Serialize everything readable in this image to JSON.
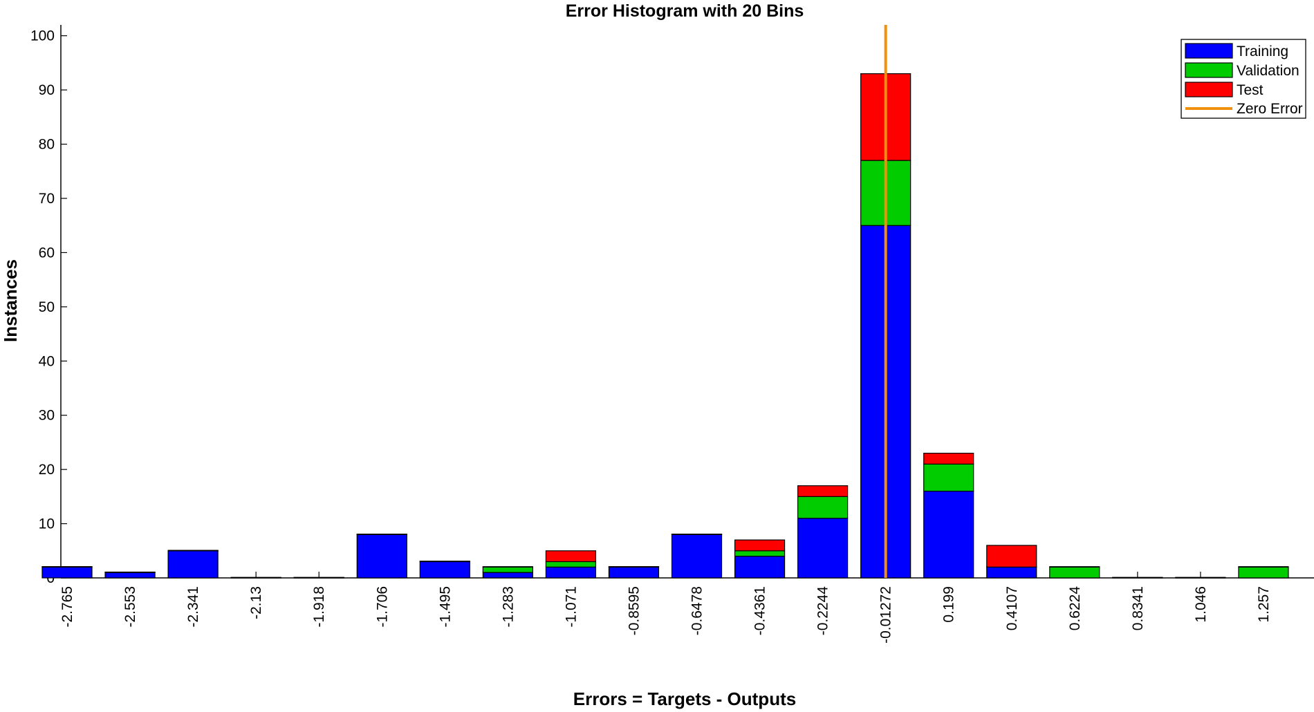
{
  "chart_data": {
    "type": "bar",
    "stacked": true,
    "title": "Error Histogram with 20 Bins",
    "xlabel": "Errors = Targets - Outputs",
    "ylabel": "Instances",
    "ylim": [
      0,
      102
    ],
    "yticks": [
      0,
      10,
      20,
      30,
      40,
      50,
      60,
      70,
      80,
      90,
      100
    ],
    "categories": [
      "-2.765",
      "-2.553",
      "-2.341",
      "-2.13",
      "-1.918",
      "-1.706",
      "-1.495",
      "-1.283",
      "-1.071",
      "-0.8595",
      "-0.6478",
      "-0.4361",
      "-0.2244",
      "-0.01272",
      "0.199",
      "0.4107",
      "0.6224",
      "0.8341",
      "1.046",
      "1.257"
    ],
    "series": [
      {
        "name": "Training",
        "color": "#0000ff",
        "values": [
          2,
          1,
          5,
          0,
          0,
          8,
          3,
          1,
          2,
          2,
          8,
          4,
          11,
          65,
          16,
          2,
          0,
          0,
          0,
          0
        ]
      },
      {
        "name": "Validation",
        "color": "#00cc00",
        "values": [
          0,
          0,
          0,
          0,
          0,
          0,
          0,
          1,
          1,
          0,
          0,
          1,
          4,
          12,
          5,
          0,
          2,
          0,
          0,
          2
        ]
      },
      {
        "name": "Test",
        "color": "#ff0000",
        "values": [
          0,
          0,
          0,
          0,
          0,
          0,
          0,
          0,
          2,
          0,
          0,
          2,
          2,
          16,
          2,
          4,
          0,
          0,
          0,
          0
        ]
      }
    ],
    "zero_error": {
      "name": "Zero Error",
      "color": "#f0900c",
      "category": "-0.01272"
    },
    "legend_position": "top-right",
    "grid": false
  }
}
